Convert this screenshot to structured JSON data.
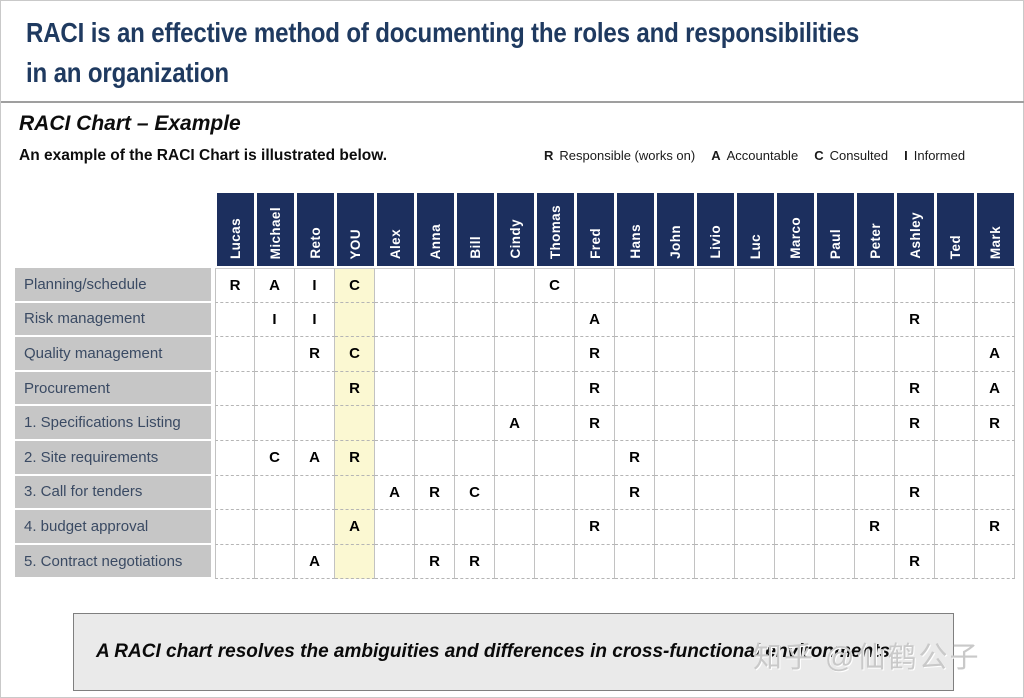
{
  "slide": {
    "title": "RACI is an effective method of documenting the roles and responsibilities\nin an organization",
    "section_title": "RACI Chart – Example",
    "subtitle": "An example of the RACI Chart is illustrated below.",
    "legend": [
      {
        "key": "R",
        "label": "Responsible (works on)"
      },
      {
        "key": "A",
        "label": "Accountable"
      },
      {
        "key": "C",
        "label": "Consulted"
      },
      {
        "key": "I",
        "label": "Informed"
      }
    ],
    "footer_note": "A RACI chart resolves the ambiguities and differences in cross-functional environments.",
    "watermark": "知乎 @仙鹤公子"
  },
  "colors": {
    "title_text": "#1F3A60",
    "header_bg": "#1C2F5E",
    "header_text": "#FFFFFF",
    "row_label_bg": "#C6C6C6",
    "row_label_text": "#3A4A63",
    "you_column_bg": "#FBF8D2",
    "footer_box_bg": "#EAEAEA"
  },
  "raci_table": {
    "people": [
      "Lucas",
      "Michael",
      "Reto",
      "YOU",
      "Alex",
      "Anna",
      "Bill",
      "Cindy",
      "Thomas",
      "Fred",
      "Hans",
      "John",
      "Livio",
      "Luc",
      "Marco",
      "Paul",
      "Peter",
      "Ashley",
      "Ted",
      "Mark"
    ],
    "highlighted_person": "YOU",
    "rows": [
      {
        "activity": "Planning/schedule",
        "cells": [
          "R",
          "A",
          "I",
          "C",
          "",
          "",
          "",
          "",
          "C",
          "",
          "",
          "",
          "",
          "",
          "",
          "",
          "",
          "",
          "",
          ""
        ]
      },
      {
        "activity": "Risk management",
        "cells": [
          "",
          "I",
          "I",
          "",
          "",
          "",
          "",
          "",
          "",
          "A",
          "",
          "",
          "",
          "",
          "",
          "",
          "",
          "R",
          "",
          ""
        ]
      },
      {
        "activity": "Quality management",
        "cells": [
          "",
          "",
          "R",
          "C",
          "",
          "",
          "",
          "",
          "",
          "R",
          "",
          "",
          "",
          "",
          "",
          "",
          "",
          "",
          "",
          "A"
        ]
      },
      {
        "activity": "Procurement",
        "cells": [
          "",
          "",
          "",
          "R",
          "",
          "",
          "",
          "",
          "",
          "R",
          "",
          "",
          "",
          "",
          "",
          "",
          "",
          "R",
          "",
          "A"
        ]
      },
      {
        "activity": "1. Specifications Listing",
        "cells": [
          "",
          "",
          "",
          "",
          "",
          "",
          "",
          "A",
          "",
          "R",
          "",
          "",
          "",
          "",
          "",
          "",
          "",
          "R",
          "",
          "R"
        ]
      },
      {
        "activity": "2. Site requirements",
        "cells": [
          "",
          "C",
          "A",
          "R",
          "",
          "",
          "",
          "",
          "",
          "",
          "R",
          "",
          "",
          "",
          "",
          "",
          "",
          "",
          "",
          ""
        ]
      },
      {
        "activity": "3. Call for tenders",
        "cells": [
          "",
          "",
          "",
          "",
          "A",
          "R",
          "C",
          "",
          "",
          "",
          "R",
          "",
          "",
          "",
          "",
          "",
          "",
          "R",
          "",
          ""
        ]
      },
      {
        "activity": "4. budget approval",
        "cells": [
          "",
          "",
          "",
          "A",
          "",
          "",
          "",
          "",
          "",
          "R",
          "",
          "",
          "",
          "",
          "",
          "",
          "R",
          "",
          "",
          "R"
        ]
      },
      {
        "activity": "5. Contract negotiations",
        "cells": [
          "",
          "",
          "A",
          "",
          "",
          "R",
          "R",
          "",
          "",
          "",
          "",
          "",
          "",
          "",
          "",
          "",
          "",
          "R",
          "",
          ""
        ]
      }
    ]
  }
}
